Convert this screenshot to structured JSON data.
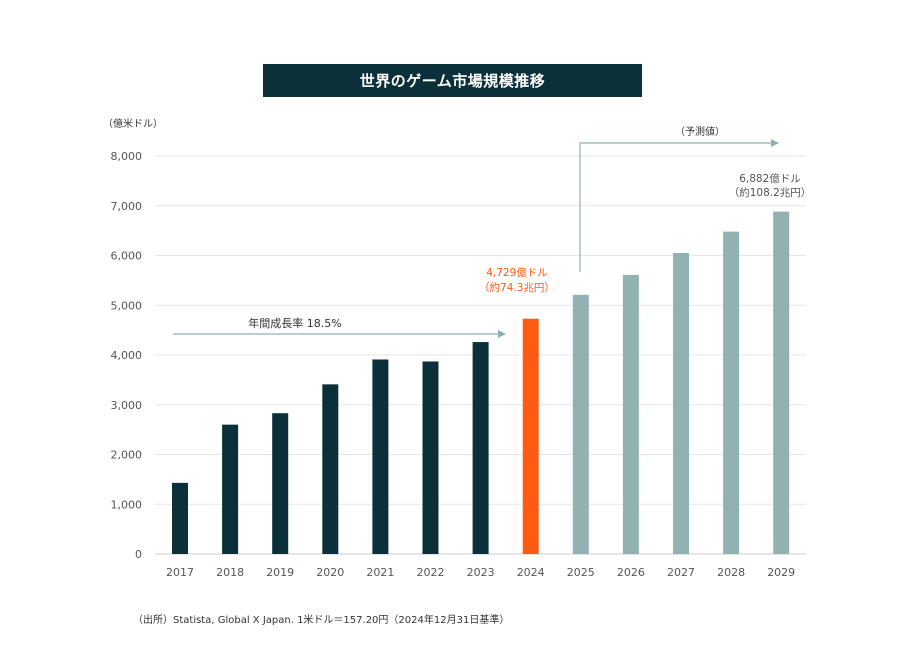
{
  "chart_data": {
    "type": "bar",
    "title": "世界のゲーム市場規模推移",
    "ylabel": "（億米ドル）",
    "ylim": [
      0,
      8000
    ],
    "yticks": [
      "0",
      "1,000",
      "2,000",
      "3,000",
      "4,000",
      "5,000",
      "6,000",
      "7,000",
      "8,000"
    ],
    "categories": [
      "2017",
      "2018",
      "2019",
      "2020",
      "2021",
      "2022",
      "2023",
      "2024",
      "2025",
      "2026",
      "2027",
      "2028",
      "2029"
    ],
    "values": [
      1430,
      2600,
      2830,
      3410,
      3910,
      3870,
      4260,
      4729,
      5210,
      5610,
      6050,
      6480,
      6882
    ],
    "bar_kind": [
      "actual",
      "actual",
      "actual",
      "actual",
      "actual",
      "actual",
      "actual",
      "current",
      "forecast",
      "forecast",
      "forecast",
      "forecast",
      "forecast"
    ],
    "colors": {
      "actual": "#0b3039",
      "current": "#ff5a14",
      "forecast": "#91b2b1",
      "arrow": "#8fb0b0",
      "grid": "#e6e6e6"
    },
    "annotations": {
      "growth": "年間成長率 18.5%",
      "forecast": "（予測値）",
      "label_2024_line1": "4,729億ドル",
      "label_2024_line2": "（約74.3兆円）",
      "label_2029_line1": "6,882億ドル",
      "label_2029_line2": "（約108.2兆円）"
    }
  },
  "source_note": "（出所）Statista, Global X Japan. 1米ドル＝157.20円（2024年12月31日基準）"
}
